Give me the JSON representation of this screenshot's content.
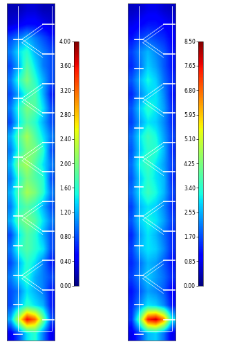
{
  "chart_data": [
    {
      "type": "heatmap",
      "tick_labels": false,
      "cells": [
        [
          0.2,
          0.2,
          0.3,
          0.3,
          0.2,
          0.2
        ],
        [
          0.3,
          0.4,
          0.5,
          0.5,
          0.4,
          0.3
        ],
        [
          0.8,
          1.0,
          1.2,
          1.0,
          0.8,
          0.6
        ],
        [
          1.0,
          1.4,
          1.6,
          1.2,
          1.0,
          0.8
        ],
        [
          0.8,
          1.2,
          1.8,
          1.4,
          1.0,
          0.8
        ],
        [
          1.0,
          1.6,
          2.0,
          1.6,
          1.2,
          0.8
        ],
        [
          0.8,
          1.2,
          1.6,
          1.8,
          1.2,
          0.6
        ],
        [
          1.0,
          1.6,
          2.0,
          1.8,
          1.4,
          0.8
        ],
        [
          0.8,
          1.4,
          1.8,
          1.6,
          1.2,
          0.8
        ],
        [
          1.2,
          1.8,
          2.2,
          1.8,
          1.4,
          1.0
        ],
        [
          1.0,
          1.6,
          2.0,
          2.0,
          1.6,
          0.8
        ],
        [
          1.2,
          2.0,
          2.2,
          1.8,
          1.4,
          1.0
        ],
        [
          1.0,
          1.6,
          2.0,
          1.8,
          1.6,
          0.8
        ],
        [
          1.2,
          1.8,
          2.2,
          2.0,
          1.6,
          1.0
        ],
        [
          1.0,
          1.6,
          1.8,
          1.6,
          1.2,
          0.8
        ],
        [
          1.2,
          1.8,
          2.0,
          1.8,
          1.4,
          1.0
        ],
        [
          0.8,
          1.4,
          1.8,
          1.6,
          1.2,
          0.8
        ],
        [
          1.0,
          1.6,
          1.8,
          1.6,
          1.4,
          0.8
        ],
        [
          0.8,
          1.2,
          1.6,
          1.4,
          1.0,
          0.6
        ],
        [
          1.0,
          1.4,
          1.6,
          1.2,
          1.0,
          0.8
        ],
        [
          0.8,
          1.0,
          1.4,
          1.2,
          1.0,
          0.6
        ],
        [
          0.8,
          1.2,
          1.6,
          1.4,
          1.2,
          0.6
        ],
        [
          1.2,
          2.4,
          3.6,
          3.2,
          2.0,
          0.8
        ],
        [
          0.4,
          0.8,
          1.4,
          1.6,
          1.0,
          0.4
        ]
      ],
      "colorbar_lim": [
        0.0,
        4.0
      ],
      "colorbar_ticks": [
        {
          "value": 0.0,
          "label": "0.00"
        },
        {
          "value": 0.4,
          "label": "0.40"
        },
        {
          "value": 0.8,
          "label": "0.80"
        },
        {
          "value": 1.2,
          "label": "1.20"
        },
        {
          "value": 1.6,
          "label": "1.60"
        },
        {
          "value": 2.0,
          "label": "2.00"
        },
        {
          "value": 2.4,
          "label": "2.40"
        },
        {
          "value": 2.8,
          "label": "2.80"
        },
        {
          "value": 3.2,
          "label": "3.20"
        },
        {
          "value": 3.6,
          "label": "3.60"
        },
        {
          "value": 4.0,
          "label": "4.00"
        }
      ]
    },
    {
      "type": "heatmap",
      "tick_labels": false,
      "cells": [
        [
          0.5,
          0.6,
          0.8,
          0.8,
          0.6,
          0.5
        ],
        [
          0.8,
          1.0,
          1.2,
          1.2,
          1.0,
          0.8
        ],
        [
          1.2,
          1.6,
          1.8,
          1.6,
          1.4,
          1.0
        ],
        [
          1.6,
          2.2,
          2.6,
          2.2,
          1.8,
          1.2
        ],
        [
          1.4,
          2.0,
          2.8,
          2.4,
          1.8,
          1.2
        ],
        [
          1.8,
          2.6,
          3.2,
          2.8,
          2.0,
          1.4
        ],
        [
          1.4,
          2.2,
          2.8,
          3.0,
          2.2,
          1.2
        ],
        [
          1.8,
          2.8,
          3.4,
          3.0,
          2.4,
          1.4
        ],
        [
          1.6,
          2.4,
          3.0,
          2.8,
          2.2,
          1.4
        ],
        [
          2.0,
          3.0,
          3.6,
          3.2,
          2.4,
          1.6
        ],
        [
          1.8,
          2.8,
          3.4,
          3.4,
          2.6,
          1.4
        ],
        [
          2.0,
          3.2,
          3.6,
          3.0,
          2.4,
          1.6
        ],
        [
          1.8,
          2.8,
          3.4,
          3.0,
          2.6,
          1.4
        ],
        [
          2.0,
          3.0,
          3.6,
          3.2,
          2.6,
          1.6
        ],
        [
          1.6,
          2.6,
          3.0,
          2.8,
          2.2,
          1.4
        ],
        [
          1.8,
          2.8,
          3.2,
          3.0,
          2.4,
          1.6
        ],
        [
          1.4,
          2.4,
          3.0,
          2.6,
          2.0,
          1.4
        ],
        [
          1.6,
          2.6,
          3.0,
          2.8,
          2.2,
          1.4
        ],
        [
          1.4,
          2.0,
          2.6,
          2.4,
          1.8,
          1.2
        ],
        [
          1.6,
          2.2,
          2.8,
          2.4,
          2.0,
          1.4
        ],
        [
          1.2,
          1.8,
          2.4,
          2.2,
          1.8,
          1.0
        ],
        [
          1.4,
          2.2,
          3.0,
          2.8,
          2.2,
          1.2
        ],
        [
          1.5,
          4.0,
          7.5,
          8.0,
          6.5,
          3.0
        ],
        [
          0.8,
          1.6,
          2.6,
          2.8,
          2.0,
          0.8
        ]
      ],
      "colorbar_lim": [
        0.0,
        8.5
      ],
      "colorbar_ticks": [
        {
          "value": 0.0,
          "label": "0.00"
        },
        {
          "value": 0.85,
          "label": "0.85"
        },
        {
          "value": 1.7,
          "label": "1.70"
        },
        {
          "value": 2.55,
          "label": "2.55"
        },
        {
          "value": 3.4,
          "label": "3.40"
        },
        {
          "value": 4.25,
          "label": "4.25"
        },
        {
          "value": 5.1,
          "label": "5.10"
        },
        {
          "value": 5.95,
          "label": "5.95"
        },
        {
          "value": 6.8,
          "label": "6.80"
        },
        {
          "value": 7.65,
          "label": "7.65"
        },
        {
          "value": 8.5,
          "label": "8.50"
        }
      ]
    }
  ]
}
